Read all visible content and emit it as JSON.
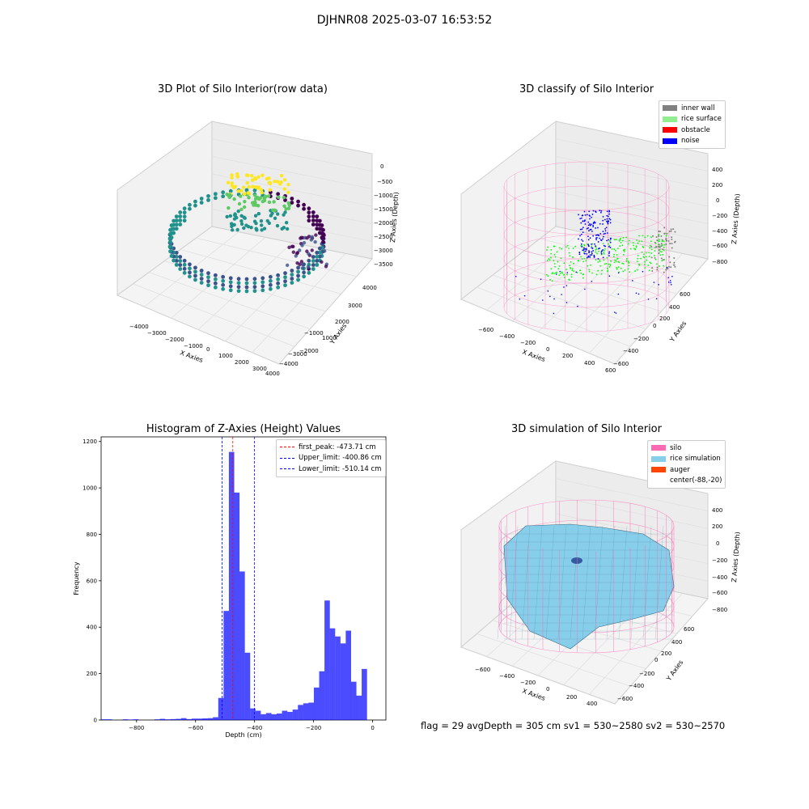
{
  "suptitle": "DJHNR08 2025-03-07 16:53:52",
  "panels": {
    "raw": {
      "title": "3D Plot of Silo Interior(row data)",
      "x_label": "X Axies",
      "y_label": "Y Axies",
      "z_label": "Z Axies (Depth)",
      "x_ticks": [
        "−4000",
        "−3000",
        "−2000",
        "−1000",
        "0",
        "1000",
        "2000",
        "3000",
        "4000"
      ],
      "y_ticks": [
        "4000",
        "3000",
        "2000",
        "1000",
        "−1000",
        "−2000",
        "−3000",
        "−4000"
      ],
      "z_ticks": [
        "0",
        "−500",
        "−1000",
        "−1500",
        "−2000",
        "−2500",
        "−3000",
        "−3500"
      ]
    },
    "classify": {
      "title": "3D classify of Silo Interior",
      "x_label": "X Axies",
      "y_label": "Y Axies",
      "z_label": "Z Axies (Depth)",
      "x_ticks": [
        "−600",
        "−400",
        "−200",
        "0",
        "200",
        "400",
        "600"
      ],
      "y_ticks": [
        "600",
        "400",
        "200",
        "0",
        "−200",
        "−400",
        "−600"
      ],
      "z_ticks": [
        "400",
        "200",
        "0",
        "−200",
        "−400",
        "−600",
        "−800"
      ],
      "legend": [
        {
          "label": "inner wall",
          "color": "#808080"
        },
        {
          "label": "rice surface",
          "color": "#90ee90"
        },
        {
          "label": "obstacle",
          "color": "#ff0000"
        },
        {
          "label": "noise",
          "color": "#0000ff"
        }
      ]
    },
    "histogram": {
      "title": "Histogram of Z-Axies (Height) Values",
      "legend": [
        {
          "label": "first_peak: -473.71 cm",
          "color": "#ff0000"
        },
        {
          "label": "Upper_limit: -400.86 cm",
          "color": "#0000ff"
        },
        {
          "label": "Lower_limit: -510.14 cm",
          "color": "#0000ff"
        }
      ]
    },
    "simulation": {
      "title": "3D simulation of Silo Interior",
      "x_label": "X Axies",
      "y_label": "Y Axies",
      "z_label": "Z Axies (Depth)",
      "x_ticks": [
        "−600",
        "−400",
        "−200",
        "0",
        "200",
        "400"
      ],
      "y_ticks": [
        "600",
        "400",
        "200",
        "0",
        "−200",
        "−400",
        "−600"
      ],
      "z_ticks": [
        "400",
        "200",
        "0",
        "−200",
        "−400",
        "−600",
        "−800"
      ],
      "legend": [
        {
          "label": "silo",
          "color": "#ff69b4"
        },
        {
          "label": "rice simulation",
          "color": "#87ceeb"
        },
        {
          "label": "auger",
          "color": "#ff4500"
        },
        {
          "label": "center(-88,-20)",
          "color": ""
        }
      ]
    }
  },
  "status_line": "flag = 29   avgDepth = 305 cm   sv1 = 530~2580   sv2 = 530~2570",
  "chart_data": {
    "type": "bar",
    "title": "Histogram of Z-Axies (Height) Values",
    "xlabel": "Depth (cm)",
    "ylabel": "Frequency",
    "xlim": [
      -920,
      45
    ],
    "ylim": [
      0,
      1220
    ],
    "x_ticks": [
      -800,
      -600,
      -400,
      -200,
      0
    ],
    "y_ticks": [
      0,
      200,
      400,
      600,
      800,
      1000,
      1200
    ],
    "bin_width": 18.2,
    "bar_color": "#0000ff",
    "bins": [
      {
        "x": -910,
        "v": 3
      },
      {
        "x": -892,
        "v": 3
      },
      {
        "x": -874,
        "v": 0
      },
      {
        "x": -856,
        "v": 0
      },
      {
        "x": -838,
        "v": 3
      },
      {
        "x": -820,
        "v": 2
      },
      {
        "x": -802,
        "v": 3
      },
      {
        "x": -784,
        "v": 0
      },
      {
        "x": -766,
        "v": 0
      },
      {
        "x": -748,
        "v": 0
      },
      {
        "x": -730,
        "v": 3
      },
      {
        "x": -712,
        "v": 5
      },
      {
        "x": -694,
        "v": 3
      },
      {
        "x": -676,
        "v": 4
      },
      {
        "x": -658,
        "v": 5
      },
      {
        "x": -640,
        "v": 8
      },
      {
        "x": -622,
        "v": 4
      },
      {
        "x": -604,
        "v": 6
      },
      {
        "x": -586,
        "v": 6
      },
      {
        "x": -568,
        "v": 7
      },
      {
        "x": -550,
        "v": 8
      },
      {
        "x": -532,
        "v": 12
      },
      {
        "x": -514,
        "v": 95
      },
      {
        "x": -496,
        "v": 470
      },
      {
        "x": -478,
        "v": 1155
      },
      {
        "x": -460,
        "v": 980
      },
      {
        "x": -442,
        "v": 640
      },
      {
        "x": -424,
        "v": 290
      },
      {
        "x": -406,
        "v": 50
      },
      {
        "x": -388,
        "v": 40
      },
      {
        "x": -370,
        "v": 25
      },
      {
        "x": -352,
        "v": 30
      },
      {
        "x": -334,
        "v": 25
      },
      {
        "x": -316,
        "v": 28
      },
      {
        "x": -298,
        "v": 40
      },
      {
        "x": -280,
        "v": 35
      },
      {
        "x": -262,
        "v": 45
      },
      {
        "x": -244,
        "v": 65
      },
      {
        "x": -226,
        "v": 72
      },
      {
        "x": -208,
        "v": 75
      },
      {
        "x": -190,
        "v": 140
      },
      {
        "x": -172,
        "v": 210
      },
      {
        "x": -154,
        "v": 515
      },
      {
        "x": -136,
        "v": 395
      },
      {
        "x": -118,
        "v": 360
      },
      {
        "x": -100,
        "v": 330
      },
      {
        "x": -82,
        "v": 385
      },
      {
        "x": -64,
        "v": 165
      },
      {
        "x": -46,
        "v": 105
      },
      {
        "x": -28,
        "v": 220
      }
    ],
    "vlines": [
      {
        "x": -473.71,
        "color": "#ff0000",
        "label": "first_peak: -473.71 cm"
      },
      {
        "x": -400.86,
        "color": "#0000ff",
        "label": "Upper_limit: -400.86 cm"
      },
      {
        "x": -510.14,
        "color": "#0000ff",
        "label": "Lower_limit: -510.14 cm"
      }
    ]
  }
}
